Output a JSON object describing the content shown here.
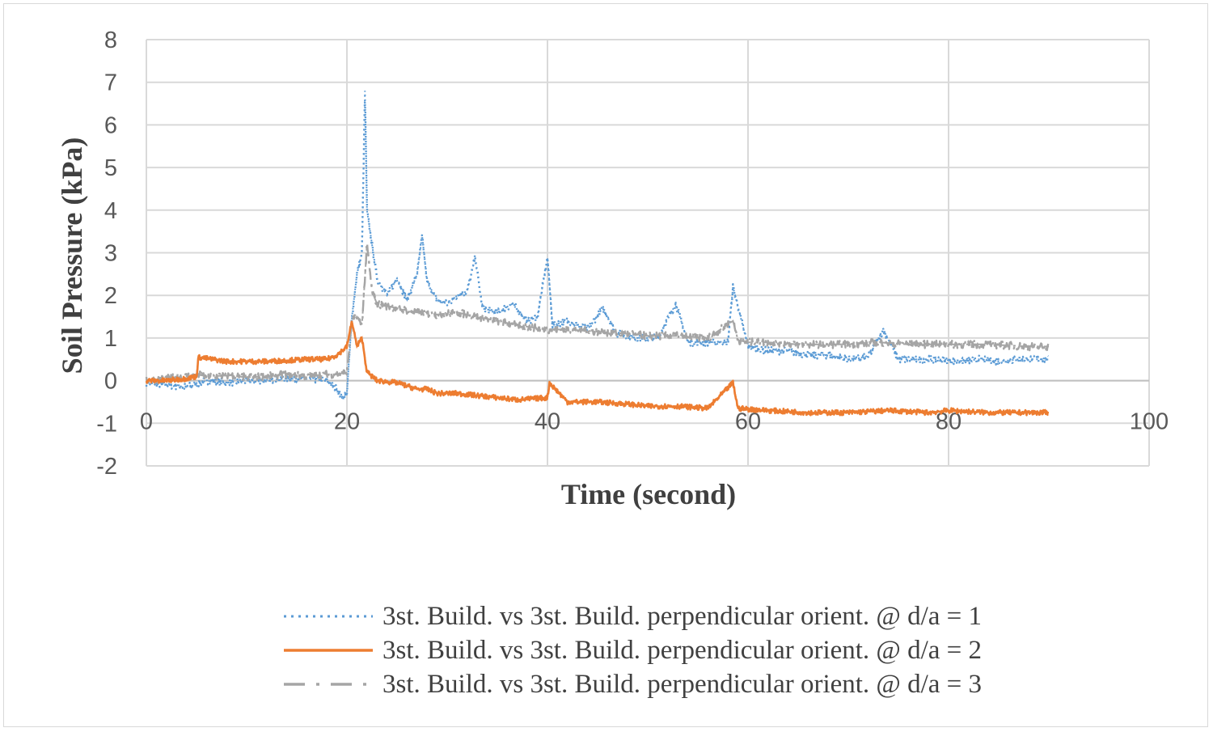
{
  "chart_data": {
    "type": "line",
    "title": "",
    "xlabel": "Time (second)",
    "ylabel": "Soil Pressure (kPa)",
    "xlim": [
      0,
      100
    ],
    "ylim": [
      -2,
      8
    ],
    "xticks": [
      0,
      20,
      40,
      60,
      80,
      100
    ],
    "yticks": [
      -2,
      -1,
      0,
      1,
      2,
      3,
      4,
      5,
      6,
      7,
      8
    ],
    "grid": true,
    "legend_position": "bottom",
    "series": [
      {
        "name": "3st. Build. vs 3st. Build. perpendicular orient. @ d/a = 1",
        "color": "#5b9bd5",
        "style": "dotted",
        "x": [
          0,
          2,
          4,
          6,
          8,
          10,
          12,
          14,
          16,
          18,
          19,
          19.5,
          20,
          20.5,
          21,
          21.5,
          21.8,
          22,
          22.5,
          23,
          24,
          25,
          26,
          27,
          27.5,
          28,
          29,
          30,
          31,
          32,
          32.8,
          33.5,
          35,
          36.5,
          38,
          39,
          40,
          40.5,
          42,
          44,
          45.5,
          47,
          49,
          51,
          52.8,
          54,
          56,
          58,
          58.5,
          60,
          62,
          64,
          66,
          68,
          70,
          72,
          73.5,
          75,
          77,
          79,
          81,
          83,
          85,
          87,
          90
        ],
        "y": [
          -0.05,
          -0.1,
          -0.15,
          0.0,
          -0.05,
          0.0,
          0.02,
          0.05,
          0.05,
          0.0,
          -0.2,
          -0.4,
          -0.3,
          1.5,
          2.5,
          3.0,
          6.8,
          4.0,
          3.2,
          2.4,
          2.0,
          2.4,
          1.9,
          2.5,
          3.4,
          2.3,
          1.9,
          1.8,
          2.0,
          2.1,
          2.9,
          1.7,
          1.6,
          1.8,
          1.4,
          1.5,
          2.9,
          1.3,
          1.4,
          1.2,
          1.7,
          1.1,
          1.0,
          1.0,
          1.8,
          0.9,
          0.9,
          0.9,
          2.2,
          0.8,
          0.7,
          0.7,
          0.6,
          0.6,
          0.5,
          0.55,
          1.2,
          0.5,
          0.5,
          0.5,
          0.45,
          0.5,
          0.45,
          0.5,
          0.5
        ]
      },
      {
        "name": "3st. Build. vs 3st. Build. perpendicular orient. @ d/a = 2",
        "color": "#ed7d31",
        "style": "solid",
        "x": [
          0,
          2,
          4,
          5,
          5.2,
          8,
          12,
          16,
          18,
          19,
          20,
          20.5,
          21,
          21.5,
          22,
          22.5,
          23,
          25,
          27,
          28,
          29,
          31,
          33,
          35,
          37,
          40,
          40.2,
          42,
          45,
          48,
          50,
          53,
          56,
          58.5,
          59,
          62,
          66,
          70,
          74,
          78,
          80,
          84,
          88,
          90
        ],
        "y": [
          0.0,
          0.0,
          0.05,
          0.1,
          0.55,
          0.45,
          0.45,
          0.5,
          0.5,
          0.6,
          0.8,
          1.4,
          0.8,
          1.0,
          0.2,
          0.1,
          0.0,
          -0.05,
          -0.2,
          -0.2,
          -0.3,
          -0.3,
          -0.35,
          -0.4,
          -0.45,
          -0.4,
          -0.05,
          -0.5,
          -0.5,
          -0.55,
          -0.6,
          -0.6,
          -0.65,
          -0.05,
          -0.65,
          -0.7,
          -0.75,
          -0.75,
          -0.7,
          -0.75,
          -0.7,
          -0.75,
          -0.75,
          -0.75
        ]
      },
      {
        "name": "3st. Build. vs 3st. Build. perpendicular orient. @ d/a = 3",
        "color": "#a5a5a5",
        "style": "dashdot",
        "x": [
          0,
          2,
          4,
          5,
          6,
          8,
          10,
          12,
          14,
          16,
          18,
          19,
          20,
          20.5,
          21,
          21.5,
          22,
          22.5,
          23,
          25,
          27,
          29,
          31,
          33,
          35,
          37,
          40,
          42,
          45,
          48,
          50,
          53,
          56,
          58.5,
          59,
          60,
          62,
          65,
          68,
          70,
          73,
          76,
          80,
          84,
          88,
          90
        ],
        "y": [
          0.0,
          0.05,
          0.1,
          0.15,
          0.1,
          0.12,
          0.08,
          0.1,
          0.15,
          0.1,
          0.15,
          0.15,
          0.2,
          1.4,
          1.5,
          1.3,
          3.2,
          2.1,
          1.8,
          1.7,
          1.6,
          1.55,
          1.6,
          1.5,
          1.4,
          1.3,
          1.2,
          1.2,
          1.15,
          1.1,
          1.05,
          1.05,
          1.0,
          1.4,
          0.95,
          0.9,
          0.9,
          0.85,
          0.85,
          0.85,
          0.9,
          0.85,
          0.85,
          0.85,
          0.8,
          0.8
        ]
      }
    ]
  }
}
